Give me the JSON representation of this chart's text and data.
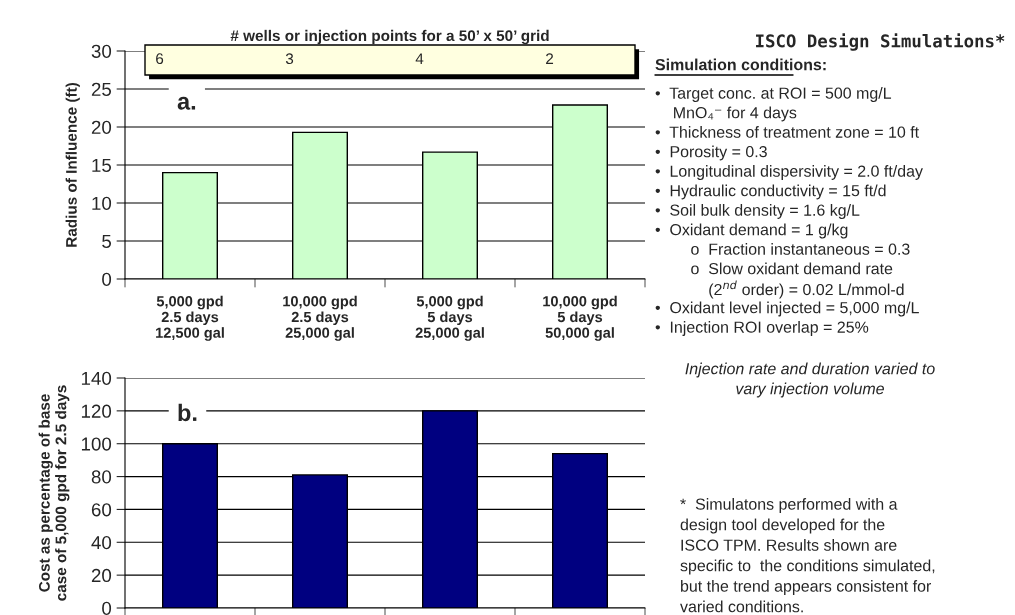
{
  "chart_data": [
    {
      "type": "bar",
      "title": "# wells or injection points for a 50’ x 50’ grid",
      "ylabel": "Radius of Influence (ft)",
      "categories": [
        "5,000 gpd\n2.5 days\n12,500 gal",
        "10,000 gpd\n2.5 days\n25,000 gal",
        "5,000 gpd\n5 days\n25,000 gal",
        "10,000 gpd\n5 days\n50,000 gal"
      ],
      "values": [
        14,
        19.3,
        16.7,
        22.9
      ],
      "color": "#ccffcc",
      "ylim": [
        0,
        30
      ],
      "yticks": [
        0,
        5,
        10,
        15,
        20,
        25,
        30
      ],
      "grid": "y",
      "annotations": [
        "a.",
        "6",
        "3",
        "4",
        "2"
      ]
    },
    {
      "type": "bar",
      "ylabel": "Cost as percentage of base\ncase of 5,000 gpd for 2.5 days",
      "categories": [
        null,
        null,
        null,
        null
      ],
      "values": [
        100,
        81,
        120,
        94
      ],
      "color": "#000080",
      "ylim": [
        0,
        140
      ],
      "yticks": [
        0,
        20,
        40,
        60,
        80,
        100,
        120,
        140
      ],
      "grid": "y",
      "tick_labels": "y",
      "annotations": [
        "b."
      ]
    },
    {
      "type": "other",
      "title": "ISCO Design Simulations*",
      "subtitle": "Simulation conditions:",
      "annotations": [
        "•  Target conc. at ROI = 500 mg/L",
        "    MnO₄⁻ for 4 days",
        "•  Thickness of treatment zone = 10 ft",
        "•  Porosity = 0.3",
        "•  Longitudinal dispersivity = 2.0 ft/day",
        "•  Hydraulic conductivity = 15 ft/d",
        "•  Soil bulk density = 1.6 kg/L",
        "•  Oxidant demand = 1 g/kg",
        "        o  Fraction instantaneous = 0.3",
        "        o  Slow oxidant demand rate",
        "            (2$^{nd}$ order) = 0.02 L/mmol-d",
        "•  Oxidant level injected = 5,000 mg/L",
        "•  Injection ROI overlap = 25%"
      ]
    },
    {
      "type": "other",
      "annotations": [
        "Injection rate and duration varied to",
        "vary injection volume"
      ]
    },
    {
      "type": "other",
      "annotations": [
        "*  Simulatons performed with a",
        "design tool developed for the",
        "ISCO TPM. Results shown are",
        "specific to  the conditions simulated,",
        "but the trend appears consistent for",
        "varied conditions."
      ]
    }
  ]
}
